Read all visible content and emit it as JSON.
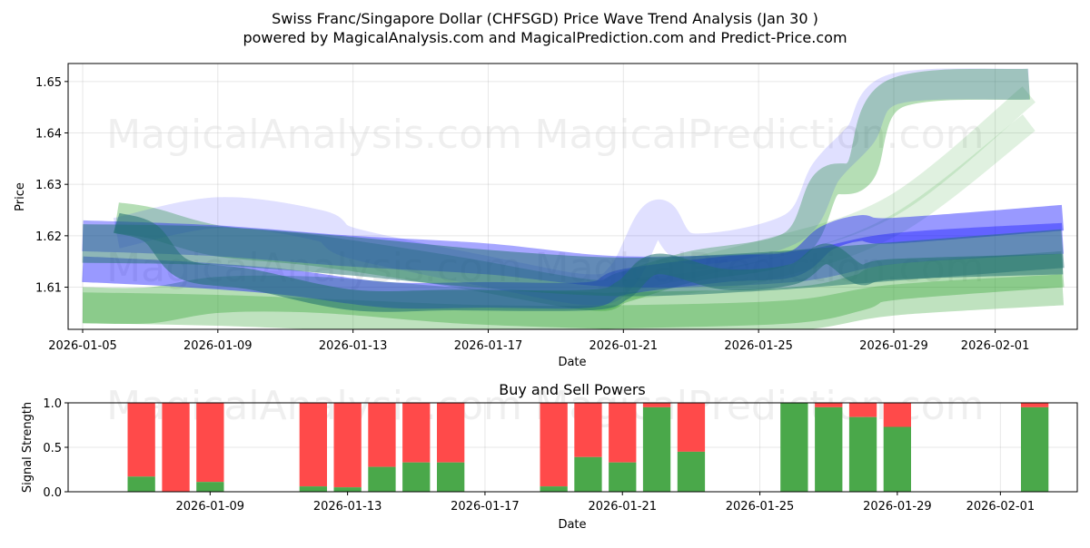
{
  "chart_data": [
    {
      "type": "area",
      "title": "Swiss Franc/Singapore Dollar (CHFSGD) Price Wave Trend Analysis (Jan 30 )",
      "subtitle": "powered by MagicalAnalysis.com and MagicalPrediction.com and Predict-Price.com",
      "xlabel": "Date",
      "ylabel": "Price",
      "xlim": [
        "2026-01-05",
        "2026-02-03"
      ],
      "ylim": [
        1.6018,
        1.6535
      ],
      "x_ticks": [
        "2026-01-05",
        "2026-01-09",
        "2026-01-13",
        "2026-01-17",
        "2026-01-21",
        "2026-01-25",
        "2026-01-29",
        "2026-02-01"
      ],
      "y_ticks": [
        1.61,
        1.62,
        1.63,
        1.64,
        1.65
      ],
      "y_tick_labels": [
        "1.61",
        "1.62",
        "1.63",
        "1.64",
        "1.65"
      ],
      "grid": true,
      "watermarks": [
        "MagicalAnalysis.com",
        "MagicalPrediction.com"
      ],
      "series": [
        {
          "name": "green-upper-wave",
          "color": "#2ca02c",
          "opacity": 0.35,
          "width": 0.006,
          "x": [
            "2026-01-06",
            "2026-01-07",
            "2026-01-09",
            "2026-01-12",
            "2026-01-16",
            "2026-01-20",
            "2026-01-21",
            "2026-01-23",
            "2026-01-26",
            "2026-01-27",
            "2026-01-28",
            "2026-01-29",
            "2026-02-02"
          ],
          "y": [
            1.6235,
            1.6225,
            1.619,
            1.617,
            1.613,
            1.6085,
            1.61,
            1.614,
            1.618,
            1.63,
            1.6325,
            1.6475,
            1.6495
          ]
        },
        {
          "name": "green-lower-band",
          "color": "#2ca02c",
          "opacity": 0.35,
          "width": 0.007,
          "x": [
            "2026-01-05",
            "2026-01-07",
            "2026-01-09",
            "2026-01-12",
            "2026-01-16",
            "2026-01-20",
            "2026-01-21",
            "2026-01-26",
            "2026-01-28",
            "2026-01-29",
            "2026-02-03"
          ],
          "y": [
            1.6065,
            1.6065,
            1.6085,
            1.6085,
            1.6065,
            1.6055,
            1.6055,
            1.6065,
            1.609,
            1.611,
            1.6135
          ]
        },
        {
          "name": "green-lowest-band",
          "color": "#2ca02c",
          "opacity": 0.3,
          "width": 0.006,
          "x": [
            "2026-01-05",
            "2026-01-09",
            "2026-01-13",
            "2026-01-17",
            "2026-01-21",
            "2026-01-26",
            "2026-01-29",
            "2026-02-03"
          ],
          "y": [
            1.606,
            1.6055,
            1.6045,
            1.6035,
            1.6035,
            1.6045,
            1.6075,
            1.6095
          ]
        },
        {
          "name": "green-diagonal-a",
          "color": "#2ca02c",
          "opacity": 0.15,
          "width": 0.004,
          "x": [
            "2026-01-21",
            "2026-01-25",
            "2026-01-29",
            "2026-02-02"
          ],
          "y": [
            1.6095,
            1.613,
            1.622,
            1.642
          ]
        },
        {
          "name": "green-diagonal-b",
          "color": "#2ca02c",
          "opacity": 0.15,
          "width": 0.004,
          "x": [
            "2026-01-21",
            "2026-01-25",
            "2026-01-29",
            "2026-02-02"
          ],
          "y": [
            1.611,
            1.617,
            1.626,
            1.6475
          ]
        },
        {
          "name": "blue-upper-band",
          "color": "#0000ff",
          "opacity": 0.4,
          "width": 0.005,
          "x": [
            "2026-01-05",
            "2026-01-08",
            "2026-01-11",
            "2026-01-14",
            "2026-01-17",
            "2026-01-20",
            "2026-01-21",
            "2026-01-24",
            "2026-01-26",
            "2026-01-27",
            "2026-01-28",
            "2026-01-29",
            "2026-02-03"
          ],
          "y": [
            1.6135,
            1.6125,
            1.611,
            1.6085,
            1.6085,
            1.6085,
            1.611,
            1.6135,
            1.6145,
            1.6195,
            1.6215,
            1.621,
            1.6235
          ]
        },
        {
          "name": "blue-flat-band",
          "color": "#0000ff",
          "opacity": 0.35,
          "width": 0.006,
          "x": [
            "2026-01-05",
            "2026-01-09",
            "2026-01-13",
            "2026-01-17",
            "2026-01-21",
            "2026-01-26",
            "2026-01-29",
            "2026-02-03"
          ],
          "y": [
            1.62,
            1.619,
            1.617,
            1.6155,
            1.613,
            1.614,
            1.6175,
            1.6195
          ]
        },
        {
          "name": "blue-light-wave",
          "color": "#0000ff",
          "opacity": 0.12,
          "width": 0.006,
          "x": [
            "2026-01-06",
            "2026-01-09",
            "2026-01-12",
            "2026-01-13",
            "2026-01-17",
            "2026-01-20",
            "2026-01-21",
            "2026-01-22",
            "2026-01-23",
            "2026-01-26",
            "2026-01-27",
            "2026-01-28",
            "2026-01-29",
            "2026-02-02"
          ],
          "y": [
            1.6205,
            1.6245,
            1.622,
            1.6185,
            1.613,
            1.6095,
            1.6125,
            1.624,
            1.6175,
            1.6215,
            1.6325,
            1.6395,
            1.6485,
            1.6495
          ]
        },
        {
          "name": "teal-main-wave",
          "color": "#1f6f6f",
          "opacity": 0.55,
          "width": 0.004,
          "x": [
            "2026-01-06",
            "2026-01-07",
            "2026-01-08",
            "2026-01-10",
            "2026-01-13",
            "2026-01-16",
            "2026-01-20",
            "2026-01-21",
            "2026-01-22",
            "2026-01-24",
            "2026-01-26",
            "2026-01-27",
            "2026-01-28",
            "2026-01-29",
            "2026-02-03"
          ],
          "y": [
            1.6225,
            1.6205,
            1.6135,
            1.6115,
            1.6075,
            1.6075,
            1.6075,
            1.6095,
            1.6145,
            1.6115,
            1.6125,
            1.6165,
            1.6125,
            1.6135,
            1.6145
          ]
        },
        {
          "name": "teal-flat-band",
          "color": "#1f6f6f",
          "opacity": 0.5,
          "width": 0.0075,
          "x": [
            "2026-01-05",
            "2026-01-09",
            "2026-01-13",
            "2026-01-17",
            "2026-01-21",
            "2026-01-25",
            "2026-01-29",
            "2026-02-03"
          ],
          "y": [
            1.6185,
            1.618,
            1.616,
            1.6135,
            1.612,
            1.613,
            1.615,
            1.6175
          ]
        }
      ]
    },
    {
      "type": "bar",
      "title": "Buy and Sell Powers",
      "xlabel": "Date",
      "ylabel": "Signal Strength",
      "ylim": [
        0,
        1.0
      ],
      "y_ticks": [
        0.0,
        0.5,
        1.0
      ],
      "y_tick_labels": [
        "0.0",
        "0.5",
        "1.0"
      ],
      "x_ticks": [
        "2026-01-09",
        "2026-01-13",
        "2026-01-17",
        "2026-01-21",
        "2026-01-25",
        "2026-01-29",
        "2026-02-01"
      ],
      "grid": true,
      "buy_color": "#4aa84a",
      "sell_color": "#ff4a4a",
      "dates": [
        "2026-01-07",
        "2026-01-08",
        "2026-01-09",
        "2026-01-12",
        "2026-01-13",
        "2026-01-14",
        "2026-01-15",
        "2026-01-16",
        "2026-01-19",
        "2026-01-20",
        "2026-01-21",
        "2026-01-22",
        "2026-01-23",
        "2026-01-26",
        "2026-01-27",
        "2026-01-28",
        "2026-01-29",
        "2026-02-02"
      ],
      "buy": [
        0.17,
        0.0,
        0.11,
        0.06,
        0.05,
        0.28,
        0.33,
        0.33,
        0.06,
        0.39,
        0.33,
        0.95,
        0.45,
        1.0,
        0.95,
        0.84,
        0.73,
        0.95
      ]
    }
  ]
}
